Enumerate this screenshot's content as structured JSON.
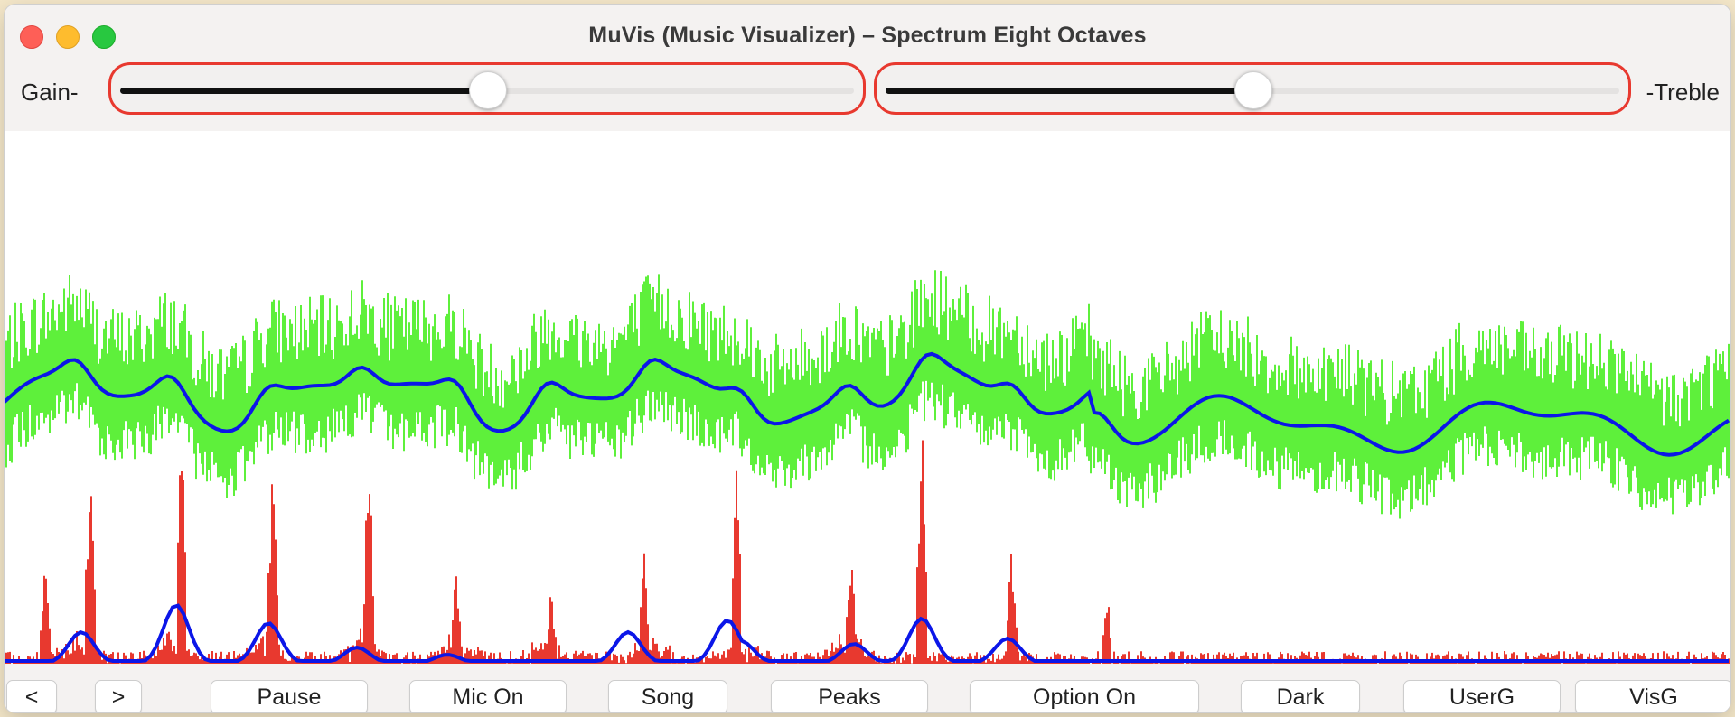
{
  "window": {
    "title": "MuVis (Music Visualizer)   –   Spectrum Eight Octaves"
  },
  "controls": {
    "gain_label": "Gain-",
    "treble_label": "-Treble",
    "gain_value": 0.5,
    "treble_value": 0.5,
    "slider_border_color": "#e8392f"
  },
  "colors": {
    "spectrum": "#5ef03b",
    "spectrum_avg": "#0b16e8",
    "peaks": "#e8392f",
    "peaks_avg": "#0b16e8"
  },
  "toolbar": {
    "prev_label": "<",
    "next_label": ">",
    "pause_label": "Pause",
    "mic_label": "Mic On",
    "song_label": "Song",
    "peaks_label": "Peaks",
    "option_label": "Option On",
    "dark_label": "Dark",
    "userg_label": "UserG",
    "visg_label": "VisG"
  }
}
